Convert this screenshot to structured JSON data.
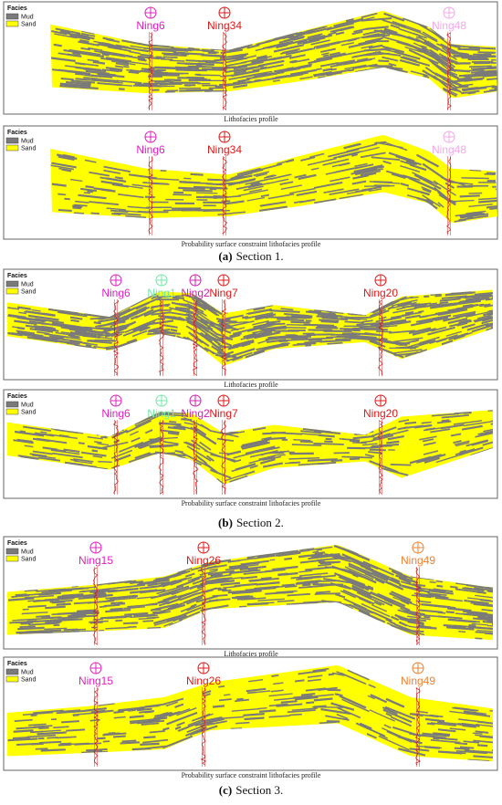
{
  "sections": [
    {
      "label": "(a)",
      "title": "Section 1.",
      "panels": [
        {
          "legend": {
            "title": "Facies",
            "items": [
              {
                "name": "Mud",
                "color": "#7a7a7a"
              },
              {
                "name": "Sand",
                "color": "#ffff00"
              }
            ]
          },
          "wells": [
            {
              "name": "Ning6",
              "color": "#e020c0"
            },
            {
              "name": "Ning34",
              "color": "#e01818"
            },
            {
              "name": "Ning48",
              "color": "#f4a8e8"
            }
          ],
          "caption": "Lithofacies profile"
        },
        {
          "legend": {
            "title": "Facies",
            "items": [
              {
                "name": "Mud",
                "color": "#7a7a7a"
              },
              {
                "name": "Sand",
                "color": "#ffff00"
              }
            ]
          },
          "wells": [
            {
              "name": "Ning6",
              "color": "#e020c0"
            },
            {
              "name": "Ning34",
              "color": "#e01818"
            },
            {
              "name": "Ning48",
              "color": "#f4a8e8"
            }
          ],
          "caption": "Probability surface constraint lithofacies profile"
        }
      ]
    },
    {
      "label": "(b)",
      "title": "Section 2.",
      "panels": [
        {
          "legend": {
            "title": "Facies",
            "items": [
              {
                "name": "Mud",
                "color": "#7a7a7a"
              },
              {
                "name": "Sand",
                "color": "#ffff00"
              }
            ]
          },
          "wells": [
            {
              "name": "Ning6",
              "color": "#e020c0"
            },
            {
              "name": "Ning1",
              "color": "#70e8a8"
            },
            {
              "name": "Ning2",
              "color": "#d020b0"
            },
            {
              "name": "Ning7",
              "color": "#e01818"
            },
            {
              "name": "Ning20",
              "color": "#e01818"
            }
          ],
          "caption": "Lithofacies profile"
        },
        {
          "legend": {
            "title": "Facies",
            "items": [
              {
                "name": "Mud",
                "color": "#7a7a7a"
              },
              {
                "name": "Sand",
                "color": "#ffff00"
              }
            ]
          },
          "wells": [
            {
              "name": "Ning6",
              "color": "#e020c0"
            },
            {
              "name": "Ning1",
              "color": "#70e8a8"
            },
            {
              "name": "Ning2",
              "color": "#d020b0"
            },
            {
              "name": "Ning7",
              "color": "#e01818"
            },
            {
              "name": "Ning20",
              "color": "#e01818"
            }
          ],
          "caption": "Probability surface constraint lithofacies profile"
        }
      ]
    },
    {
      "label": "(c)",
      "title": "Section 3.",
      "panels": [
        {
          "legend": {
            "title": "Facies",
            "items": [
              {
                "name": "Mud",
                "color": "#7a7a7a"
              },
              {
                "name": "Sand",
                "color": "#ffff00"
              }
            ]
          },
          "wells": [
            {
              "name": "Ning15",
              "color": "#e020c0"
            },
            {
              "name": "Ning26",
              "color": "#e01818"
            },
            {
              "name": "Ning49",
              "color": "#f08030"
            }
          ],
          "caption": "Lithofacies profile"
        },
        {
          "legend": {
            "title": "Facies",
            "items": [
              {
                "name": "Mud",
                "color": "#7a7a7a"
              },
              {
                "name": "Sand",
                "color": "#ffff00"
              }
            ]
          },
          "wells": [
            {
              "name": "Ning15",
              "color": "#e020c0"
            },
            {
              "name": "Ning26",
              "color": "#e01818"
            },
            {
              "name": "Ning49",
              "color": "#f08030"
            }
          ],
          "caption": "Probability surface constraint lithofacies profile"
        }
      ]
    }
  ]
}
